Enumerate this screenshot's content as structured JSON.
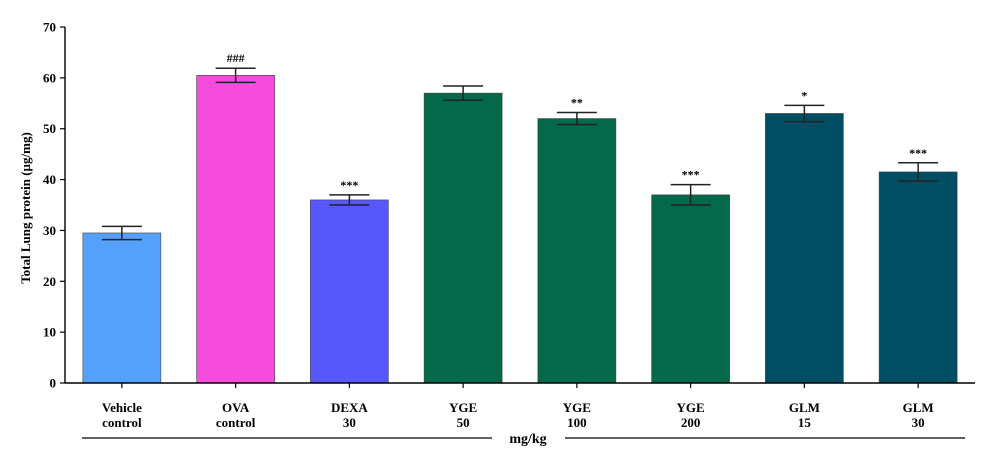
{
  "chart_data": {
    "type": "bar",
    "categories": [
      [
        "Vehicle",
        "control"
      ],
      [
        "OVA",
        "control"
      ],
      [
        "DEXA",
        "30"
      ],
      [
        "YGE",
        "50"
      ],
      [
        "YGE",
        "100"
      ],
      [
        "YGE",
        "200"
      ],
      [
        "GLM",
        "15"
      ],
      [
        "GLM",
        "30"
      ]
    ],
    "values": [
      29.5,
      60.5,
      36.0,
      57.0,
      52.0,
      37.0,
      53.0,
      41.5
    ],
    "errors": [
      1.3,
      1.4,
      1.0,
      1.4,
      1.2,
      2.0,
      1.6,
      1.8
    ],
    "annotations": [
      "",
      "###",
      "***",
      "",
      "**",
      "***",
      "*",
      "***"
    ],
    "colors": [
      "#55a0fa",
      "#f74cdb",
      "#5757fb",
      "#04694a",
      "#04694a",
      "#04694a",
      "#004e63",
      "#004e63"
    ],
    "ylabel": "Total Lung protein (µg/mg)",
    "xlabel": "mg/kg",
    "ylim": [
      0,
      70
    ],
    "yticks": [
      0,
      10,
      20,
      30,
      40,
      50,
      60,
      70
    ],
    "grid": false
  }
}
